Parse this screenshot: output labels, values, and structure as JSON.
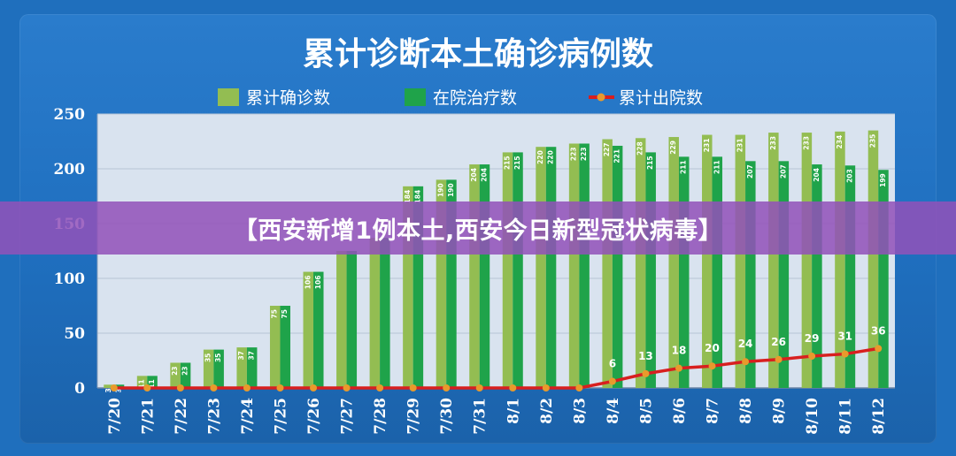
{
  "banner": {
    "text": "【西安新增1例本土,西安今日新型冠状病毒】"
  },
  "colors": {
    "background": "#1f6fbd",
    "plot_background": "#d9e3ef",
    "bar_cumulative": "#93bd52",
    "bar_in_treatment": "#1fa34a",
    "line_discharged": "#d81f1f",
    "line_marker": "#e89a2c",
    "text": "#ffffff",
    "banner": "#9152b9"
  },
  "chart_data": {
    "type": "bar",
    "title": "累计诊断本土确诊病例数",
    "categories": [
      "7/20",
      "7/21",
      "7/22",
      "7/23",
      "7/24",
      "7/25",
      "7/26",
      "7/27",
      "7/28",
      "7/29",
      "7/30",
      "7/31",
      "8/1",
      "8/2",
      "8/3",
      "8/4",
      "8/5",
      "8/6",
      "8/7",
      "8/8",
      "8/9",
      "8/10",
      "8/11",
      "8/12"
    ],
    "ylim": [
      0,
      250
    ],
    "yticks": [
      "0",
      "50",
      "100",
      "150",
      "200",
      "250"
    ],
    "legend_position": "top",
    "series": [
      {
        "name": "累计确诊数",
        "kind": "bar",
        "color_key": "bar_cumulative",
        "values": [
          3,
          11,
          23,
          35,
          37,
          75,
          106,
          125,
          137,
          184,
          190,
          204,
          215,
          220,
          223,
          227,
          228,
          229,
          231,
          231,
          233,
          233,
          234,
          235
        ],
        "labels": [
          "3",
          "11",
          "23",
          "35",
          "37",
          "75",
          "106",
          "",
          "",
          "184",
          "190",
          "204",
          "215",
          "220",
          "223",
          "227",
          "228",
          "229",
          "231",
          "231",
          "233",
          "233",
          "234",
          "235"
        ]
      },
      {
        "name": "在院治疗数",
        "kind": "bar",
        "color_key": "bar_in_treatment",
        "values": [
          3,
          11,
          23,
          35,
          37,
          75,
          106,
          125,
          137,
          184,
          190,
          204,
          215,
          220,
          223,
          221,
          215,
          211,
          211,
          207,
          207,
          204,
          203,
          199
        ],
        "labels": [
          "3",
          "11",
          "23",
          "35",
          "37",
          "75",
          "106",
          "",
          "",
          "184",
          "190",
          "204",
          "215",
          "220",
          "223",
          "221",
          "215",
          "211",
          "211",
          "207",
          "207",
          "204",
          "203",
          "199"
        ]
      },
      {
        "name": "累计出院数",
        "kind": "line",
        "color_key": "line_discharged",
        "values": [
          0,
          0,
          0,
          0,
          0,
          0,
          0,
          0,
          0,
          0,
          0,
          0,
          0,
          0,
          0,
          6,
          13,
          18,
          20,
          24,
          26,
          29,
          31,
          36
        ],
        "labels": [
          "",
          "",
          "",
          "",
          "",
          "",
          "",
          "",
          "",
          "",
          "",
          "",
          "",
          "",
          "",
          "6",
          "13",
          "18",
          "20",
          "24",
          "26",
          "29",
          "31",
          "36"
        ]
      }
    ]
  }
}
